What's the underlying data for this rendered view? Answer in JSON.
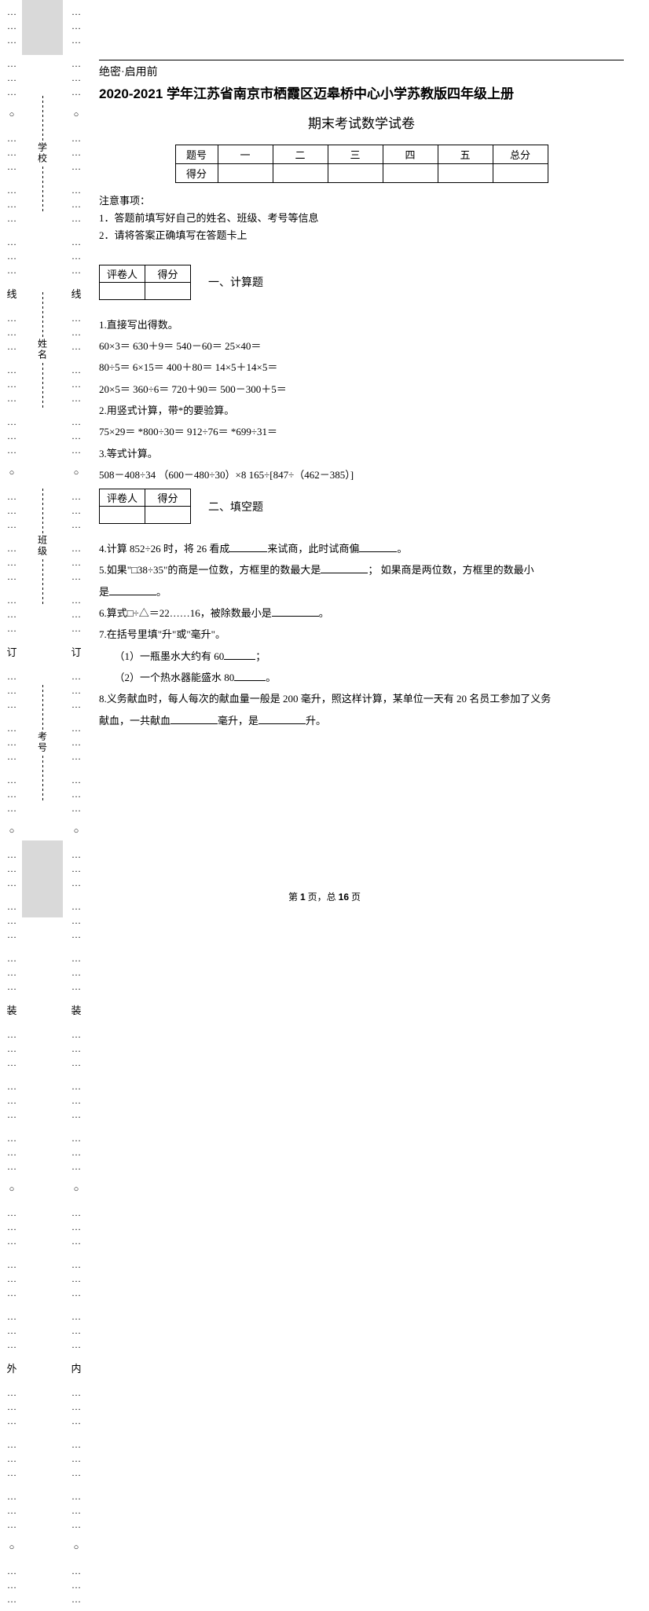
{
  "binding": {
    "outer_chars": [
      "线",
      "订",
      "装",
      "外"
    ],
    "inner_chars": [
      "线",
      "订",
      "装",
      "内"
    ],
    "side_labels": [
      "考号",
      "班级",
      "姓名",
      "学校"
    ]
  },
  "header": {
    "secret": "绝密·启用前",
    "title_year": "2020-2021",
    "title_rest": " 学年江苏省南京市栖霞区迈皋桥中心小学苏教版四年级上册",
    "subtitle": "期末考试数学试卷"
  },
  "score_table": {
    "row1": [
      "题号",
      "一",
      "二",
      "三",
      "四",
      "五",
      "总分"
    ],
    "row2_head": "得分"
  },
  "notice": {
    "head": "注意事项：",
    "l1": "1．答题前填写好自己的姓名、班级、考号等信息",
    "l2": "2．请将答案正确填写在答题卡上"
  },
  "grader": {
    "c1": "评卷人",
    "c2": "得分"
  },
  "section1": {
    "title": "一、计算题",
    "q1": "1.直接写出得数。",
    "q1_l1": "60×3＝  630＋9＝  540－60＝  25×40＝",
    "q1_l2": "80÷5＝  6×15＝  400＋80＝  14×5＋14×5＝",
    "q1_l3": "20×5＝  360÷6＝  720＋90＝  500－300＋5＝",
    "q2": "2.用竖式计算，带*的要验算。",
    "q2_l1": "75×29＝  *800÷30＝  912÷76＝  *699÷31＝",
    "q3": "3.等式计算。",
    "q3_l1": "508－408÷34  （600－480÷30）×8  165÷[847÷（462－385）]"
  },
  "section2": {
    "title": "二、填空题",
    "q4a": "4.计算 852÷26 时，将 26 看成",
    "q4b": "来试商，此时试商偏",
    "q4c": "。",
    "q5a": "5.如果\"□38÷35\"的商是一位数，方框里的数最大是",
    "q5b": "； 如果商是两位数，方框里的数最小",
    "q5c": "是",
    "q5d": "。",
    "q6a": "6.算式□÷△＝22……16，被除数最小是",
    "q6b": "。",
    "q7": "7.在括号里填\"升\"或\"毫升\"。",
    "q7_1a": "（1）一瓶墨水大约有 60",
    "q7_1b": "；",
    "q7_2a": "（2）一个热水器能盛水 80",
    "q7_2b": "。",
    "q8a": "8.义务献血时，每人每次的献血量一般是 200 毫升，照这样计算，某单位一天有 20 名员工参加了义务",
    "q8b": "献血，一共献血",
    "q8c": "毫升，是",
    "q8d": "升。"
  },
  "footer": {
    "a": "第 ",
    "p": "1",
    "b": " 页，总 ",
    "t": "16",
    "c": " 页"
  }
}
